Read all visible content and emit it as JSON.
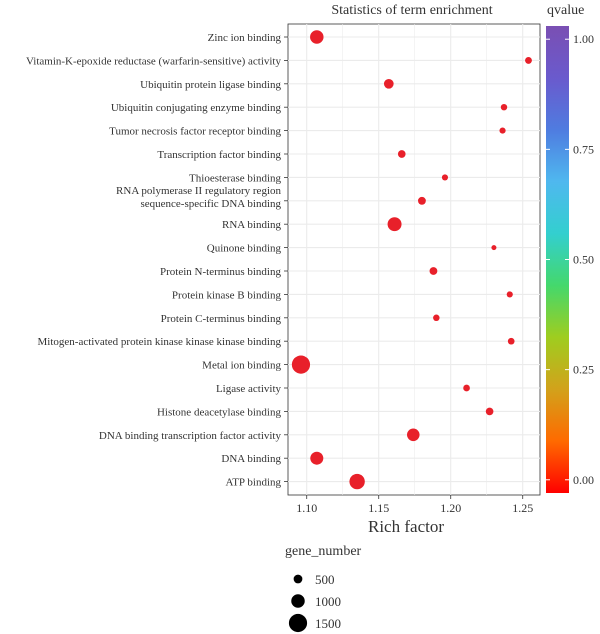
{
  "chart_data": {
    "type": "scatter",
    "title": "Statistics of term enrichment",
    "xlabel": "Rich factor",
    "ylabel": "",
    "xlim": [
      1.087,
      1.262
    ],
    "x_ticks": [
      1.1,
      1.15,
      1.2,
      1.25
    ],
    "x_tick_labels": [
      "1.10",
      "1.15",
      "1.20",
      "1.25"
    ],
    "grid": true,
    "categories": [
      "Zinc ion binding",
      "Vitamin-K-epoxide reductase (warfarin-sensitive) activity",
      "Ubiquitin protein ligase binding",
      "Ubiquitin conjugating enzyme binding",
      "Tumor necrosis factor receptor binding",
      "Transcription factor binding",
      "Thioesterase binding",
      "RNA polymerase II regulatory region\nsequence-specific DNA binding",
      "RNA binding",
      "Quinone binding",
      "Protein N-terminus binding",
      "Protein kinase B binding",
      "Protein C-terminus binding",
      "Mitogen-activated protein kinase kinase kinase binding",
      "Metal ion binding",
      "Ligase activity",
      "Histone deacetylase binding",
      "DNA binding transcription factor activity",
      "DNA binding",
      "ATP binding"
    ],
    "points": [
      {
        "term": "Zinc ion binding",
        "rich_factor": 1.107,
        "gene_number": 1000,
        "qvalue": 0.0
      },
      {
        "term": "Vitamin-K-epoxide reductase (warfarin-sensitive) activity",
        "rich_factor": 1.254,
        "gene_number": 300,
        "qvalue": 0.0
      },
      {
        "term": "Ubiquitin protein ligase binding",
        "rich_factor": 1.157,
        "gene_number": 600,
        "qvalue": 0.0
      },
      {
        "term": "Ubiquitin conjugating enzyme binding",
        "rich_factor": 1.237,
        "gene_number": 250,
        "qvalue": 0.0
      },
      {
        "term": "Tumor necrosis factor receptor binding",
        "rich_factor": 1.236,
        "gene_number": 220,
        "qvalue": 0.0
      },
      {
        "term": "Transcription factor binding",
        "rich_factor": 1.166,
        "gene_number": 380,
        "qvalue": 0.0
      },
      {
        "term": "Thioesterase binding",
        "rich_factor": 1.196,
        "gene_number": 220,
        "qvalue": 0.0
      },
      {
        "term": "RNA polymerase II regulatory region\nsequence-specific DNA binding",
        "rich_factor": 1.18,
        "gene_number": 400,
        "qvalue": 0.0
      },
      {
        "term": "RNA binding",
        "rich_factor": 1.161,
        "gene_number": 1050,
        "qvalue": 0.0
      },
      {
        "term": "Quinone binding",
        "rich_factor": 1.23,
        "gene_number": 100,
        "qvalue": 0.0
      },
      {
        "term": "Protein N-terminus binding",
        "rich_factor": 1.188,
        "gene_number": 400,
        "qvalue": 0.0
      },
      {
        "term": "Protein kinase B binding",
        "rich_factor": 1.241,
        "gene_number": 220,
        "qvalue": 0.0
      },
      {
        "term": "Protein C-terminus binding",
        "rich_factor": 1.19,
        "gene_number": 260,
        "qvalue": 0.0
      },
      {
        "term": "Mitogen-activated protein kinase kinase kinase binding",
        "rich_factor": 1.242,
        "gene_number": 280,
        "qvalue": 0.0
      },
      {
        "term": "Metal ion binding",
        "rich_factor": 1.096,
        "gene_number": 1500,
        "qvalue": 0.0
      },
      {
        "term": "Ligase activity",
        "rich_factor": 1.211,
        "gene_number": 280,
        "qvalue": 0.0
      },
      {
        "term": "Histone deacetylase binding",
        "rich_factor": 1.227,
        "gene_number": 380,
        "qvalue": 0.0
      },
      {
        "term": "DNA binding transcription factor activity",
        "rich_factor": 1.174,
        "gene_number": 900,
        "qvalue": 0.0
      },
      {
        "term": "DNA binding",
        "rich_factor": 1.107,
        "gene_number": 950,
        "qvalue": 0.0
      },
      {
        "term": "ATP binding",
        "rich_factor": 1.135,
        "gene_number": 1200,
        "qvalue": 0.0
      }
    ],
    "color_legend": {
      "title": "qvalue",
      "ticks": [
        1.0,
        0.75,
        0.5,
        0.25,
        0.0
      ],
      "tick_labels": [
        "1.00",
        "0.75",
        "0.50",
        "0.25",
        "0.00"
      ],
      "colors_low_to_high": [
        "#ff0000",
        "#ff6a00",
        "#d2a21b",
        "#9fcd1f",
        "#44d86c",
        "#33cfcf",
        "#4fb8ef",
        "#4f7ce0",
        "#6a5acd",
        "#7a4fb3"
      ],
      "position": "right"
    },
    "size_legend": {
      "title": "gene_number",
      "values": [
        500,
        1000,
        1500
      ],
      "labels": [
        "500",
        "1000",
        "1500"
      ],
      "position": "bottom-left"
    },
    "point_color": "#e8202a",
    "panel_background": "#ffffff",
    "grid_color": "#ebebeb"
  }
}
